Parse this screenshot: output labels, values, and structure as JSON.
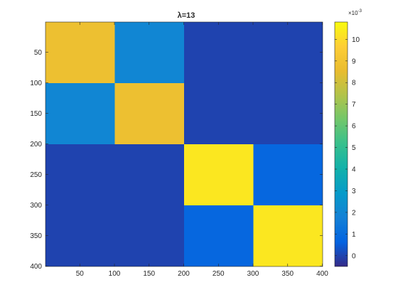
{
  "chart_data": {
    "type": "heatmap",
    "title": "λ=13",
    "xlabel": "",
    "ylabel": "",
    "xlim": [
      1,
      400
    ],
    "ylim": [
      1,
      400
    ],
    "y_direction": "reversed",
    "x_ticks": [
      "50",
      "100",
      "150",
      "200",
      "250",
      "300",
      "350",
      "400"
    ],
    "y_ticks": [
      "50",
      "100",
      "150",
      "200",
      "250",
      "300",
      "350",
      "400"
    ],
    "x_tick_values": [
      50,
      100,
      150,
      200,
      250,
      300,
      350,
      400
    ],
    "y_tick_values": [
      50,
      100,
      150,
      200,
      250,
      300,
      350,
      400
    ],
    "colormap": "parula",
    "colorbar": {
      "exponent_label": "×10",
      "exponent": "-3",
      "clim": [
        -0.5,
        10.8
      ],
      "tick_values": [
        0,
        1,
        2,
        3,
        4,
        5,
        6,
        7,
        8,
        9,
        10
      ],
      "tick_labels": [
        "0",
        "1",
        "2",
        "3",
        "4",
        "5",
        "6",
        "7",
        "8",
        "9",
        "10"
      ]
    },
    "blocks": [
      {
        "rows": [
          1,
          100
        ],
        "cols": [
          1,
          100
        ],
        "value": 8.8
      },
      {
        "rows": [
          1,
          100
        ],
        "cols": [
          101,
          200
        ],
        "value": 2.0
      },
      {
        "rows": [
          101,
          200
        ],
        "cols": [
          1,
          100
        ],
        "value": 2.0
      },
      {
        "rows": [
          101,
          200
        ],
        "cols": [
          101,
          200
        ],
        "value": 8.8
      },
      {
        "rows": [
          201,
          300
        ],
        "cols": [
          201,
          300
        ],
        "value": 10.3
      },
      {
        "rows": [
          201,
          300
        ],
        "cols": [
          301,
          400
        ],
        "value": 0.8
      },
      {
        "rows": [
          301,
          400
        ],
        "cols": [
          201,
          300
        ],
        "value": 0.8
      },
      {
        "rows": [
          301,
          400
        ],
        "cols": [
          301,
          400
        ],
        "value": 10.3
      }
    ],
    "background_value": 0.0,
    "grid": false
  }
}
